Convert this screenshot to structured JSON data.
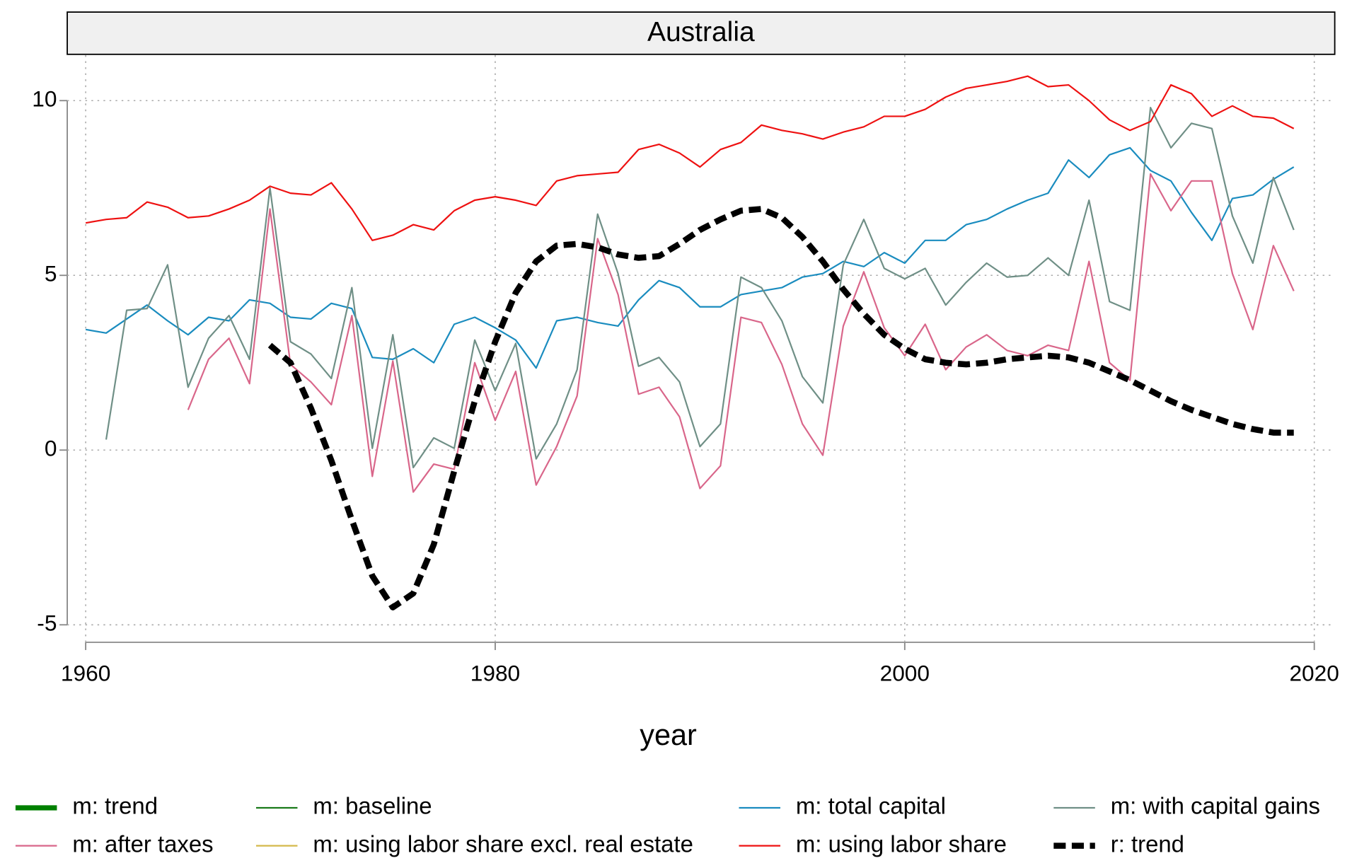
{
  "chart_data": {
    "type": "line",
    "title": "Australia",
    "x_label": "year",
    "xlim": [
      1959.1,
      2021
    ],
    "xticks": [
      1960,
      1980,
      2000,
      2020
    ],
    "ylim": [
      -5.5,
      11.3
    ],
    "yticks": [
      -5,
      0,
      5,
      10
    ],
    "grid": true,
    "x": [
      1960,
      1961,
      1962,
      1963,
      1964,
      1965,
      1966,
      1967,
      1968,
      1969,
      1970,
      1971,
      1972,
      1973,
      1974,
      1975,
      1976,
      1977,
      1978,
      1979,
      1980,
      1981,
      1982,
      1983,
      1984,
      1985,
      1986,
      1987,
      1988,
      1989,
      1990,
      1991,
      1992,
      1993,
      1994,
      1995,
      1996,
      1997,
      1998,
      1999,
      2000,
      2001,
      2002,
      2003,
      2004,
      2005,
      2006,
      2007,
      2008,
      2009,
      2010,
      2011,
      2012,
      2013,
      2014,
      2015,
      2016,
      2017,
      2018,
      2019
    ],
    "series": [
      {
        "name": "m: trend",
        "color": "#008000",
        "thick": true
      },
      {
        "name": "m: baseline",
        "color": "#1a7a1a"
      },
      {
        "name": "m: total capital",
        "color": "#1a8cbf",
        "values": [
          3.45,
          3.35,
          3.75,
          4.15,
          3.7,
          3.3,
          3.8,
          3.7,
          4.3,
          4.2,
          3.8,
          3.75,
          4.2,
          4.05,
          2.65,
          2.6,
          2.9,
          2.5,
          3.6,
          3.8,
          3.5,
          3.15,
          2.35,
          3.7,
          3.8,
          3.65,
          3.55,
          4.3,
          4.85,
          4.65,
          4.1,
          4.1,
          4.45,
          4.55,
          4.65,
          4.95,
          5.05,
          5.4,
          5.25,
          5.65,
          5.35,
          6.0,
          6.0,
          6.45,
          6.6,
          6.9,
          7.15,
          7.35,
          8.3,
          7.8,
          8.45,
          8.65,
          8.0,
          7.7,
          6.8,
          6.0,
          7.2,
          7.3,
          7.75,
          8.1
        ]
      },
      {
        "name": "m: with capital gains",
        "color": "#6f8f86",
        "values": [
          null,
          0.3,
          4.0,
          4.05,
          5.3,
          1.8,
          3.2,
          3.85,
          2.6,
          7.5,
          3.1,
          2.75,
          2.05,
          4.65,
          0.05,
          3.3,
          -0.5,
          0.35,
          0.05,
          3.15,
          1.7,
          3.05,
          -0.25,
          0.75,
          2.3,
          6.75,
          5.05,
          2.4,
          2.65,
          1.95,
          0.1,
          0.75,
          4.95,
          4.65,
          3.7,
          2.1,
          1.35,
          5.3,
          6.6,
          5.2,
          4.9,
          5.2,
          4.15,
          4.8,
          5.35,
          4.95,
          5.0,
          5.5,
          5.0,
          7.15,
          4.25,
          4.0,
          9.8,
          8.65,
          9.35,
          9.2,
          6.7,
          5.35,
          7.8,
          6.3
        ]
      },
      {
        "name": "m: after taxes",
        "color": "#d9668a",
        "values": [
          null,
          null,
          null,
          null,
          null,
          1.15,
          2.6,
          3.2,
          1.9,
          6.9,
          2.45,
          1.95,
          1.3,
          3.85,
          -0.75,
          2.55,
          -1.2,
          -0.4,
          -0.55,
          2.5,
          0.85,
          2.25,
          -1.0,
          0.1,
          1.55,
          6.05,
          4.45,
          1.6,
          1.8,
          0.95,
          -1.1,
          -0.45,
          3.8,
          3.65,
          2.45,
          0.75,
          -0.15,
          3.55,
          5.1,
          3.5,
          2.7,
          3.6,
          2.3,
          2.95,
          3.3,
          2.85,
          2.7,
          3.0,
          2.85,
          5.4,
          2.5,
          2.0,
          7.9,
          6.85,
          7.7,
          7.7,
          5.05,
          3.45,
          5.85,
          4.55
        ]
      },
      {
        "name": "m: using labor share excl. real estate",
        "color": "#d4b84a"
      },
      {
        "name": "m: using labor share",
        "color": "#ee1111",
        "values": [
          6.5,
          6.6,
          6.65,
          7.1,
          6.95,
          6.65,
          6.7,
          6.9,
          7.15,
          7.55,
          7.35,
          7.3,
          7.65,
          6.9,
          6.0,
          6.15,
          6.45,
          6.3,
          6.85,
          7.15,
          7.25,
          7.15,
          7.0,
          7.7,
          7.85,
          7.9,
          7.95,
          8.6,
          8.75,
          8.5,
          8.1,
          8.6,
          8.8,
          9.3,
          9.15,
          9.05,
          8.9,
          9.1,
          9.25,
          9.55,
          9.55,
          9.75,
          10.1,
          10.35,
          10.45,
          10.55,
          10.7,
          10.4,
          10.45,
          10.0,
          9.45,
          9.15,
          9.4,
          10.45,
          10.2,
          9.55,
          9.85,
          9.55,
          9.5,
          9.2
        ]
      },
      {
        "name": "r: trend",
        "color": "#000000",
        "dashed": true,
        "values": [
          null,
          null,
          null,
          null,
          null,
          null,
          null,
          null,
          null,
          3.0,
          2.5,
          1.2,
          -0.3,
          -2.0,
          -3.6,
          -4.5,
          -4.1,
          -2.7,
          -0.6,
          1.4,
          3.1,
          4.5,
          5.4,
          5.85,
          5.9,
          5.8,
          5.6,
          5.5,
          5.55,
          5.9,
          6.3,
          6.6,
          6.85,
          6.9,
          6.65,
          6.1,
          5.4,
          4.6,
          3.9,
          3.3,
          2.9,
          2.6,
          2.5,
          2.45,
          2.5,
          2.6,
          2.65,
          2.7,
          2.65,
          2.5,
          2.25,
          2.0,
          1.7,
          1.4,
          1.15,
          0.95,
          0.75,
          0.6,
          0.5,
          0.5
        ]
      }
    ]
  }
}
